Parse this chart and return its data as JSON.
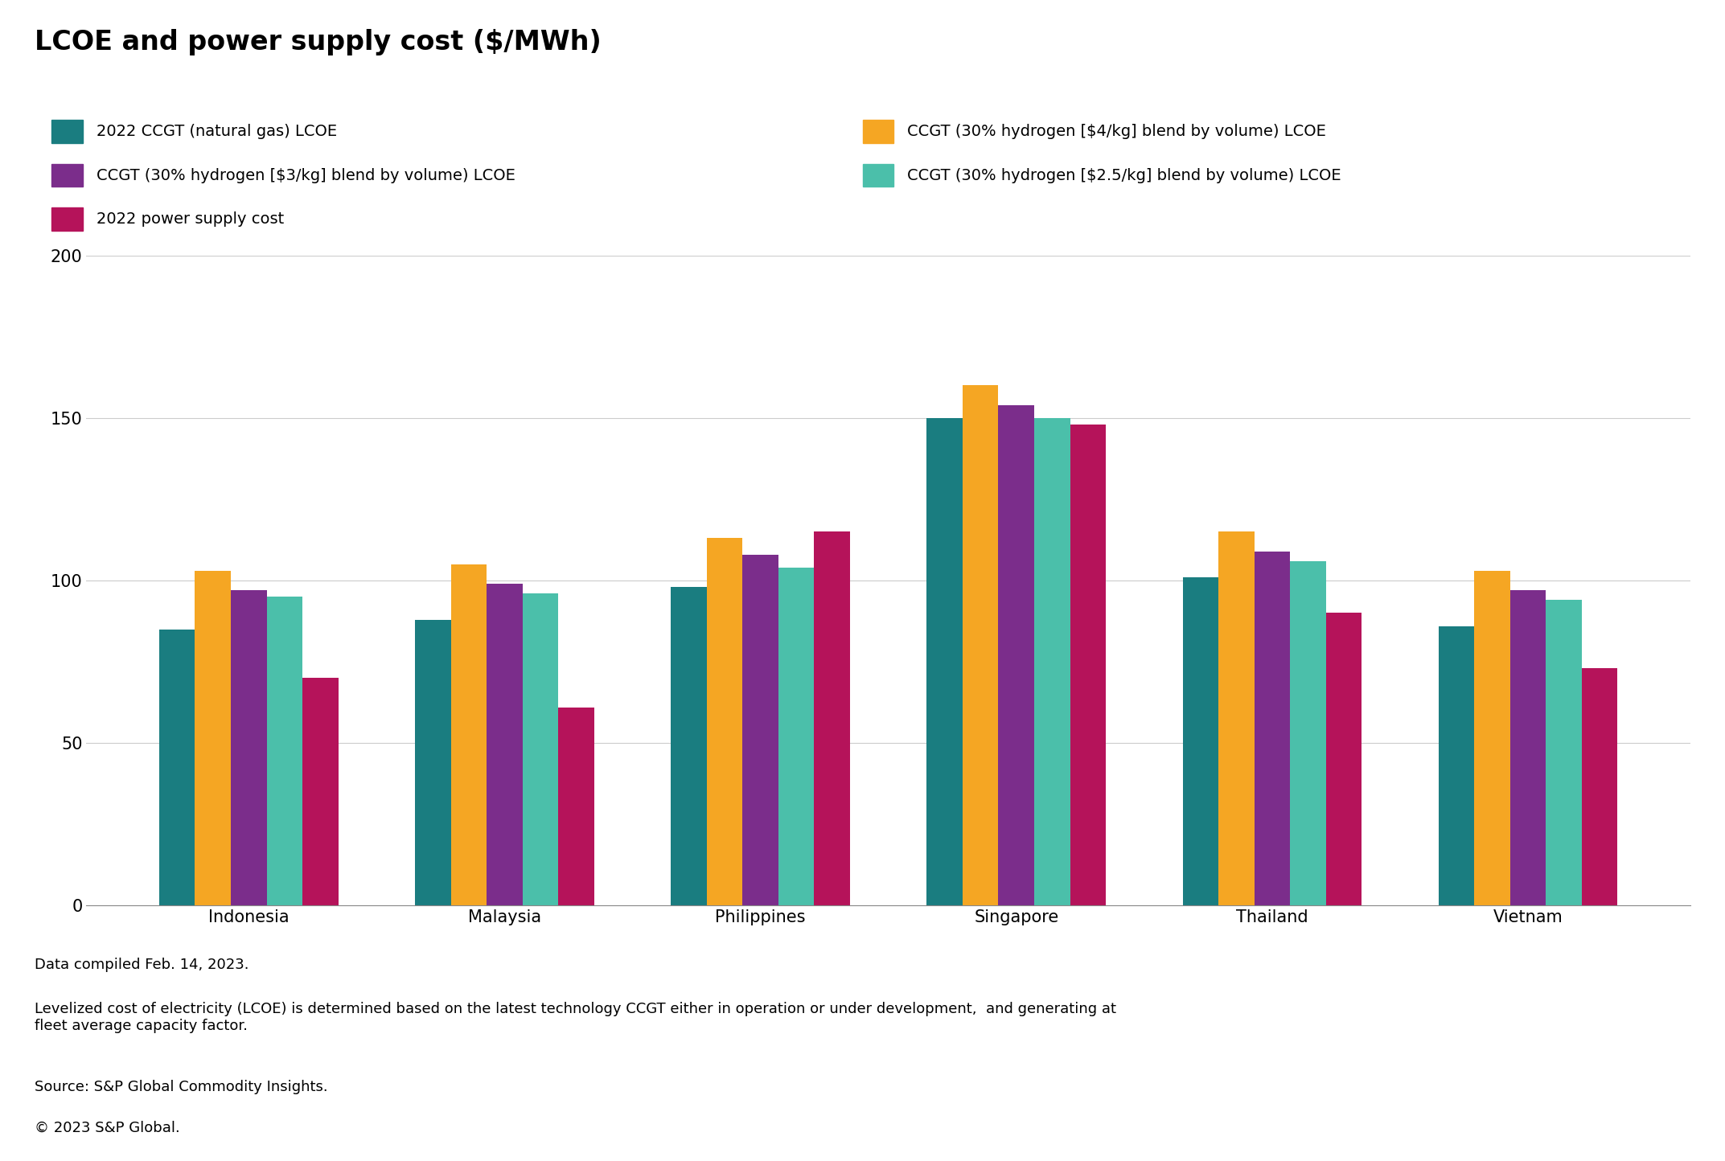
{
  "title": "LCOE and power supply cost ($/MWh)",
  "categories": [
    "Indonesia",
    "Malaysia",
    "Philippines",
    "Singapore",
    "Thailand",
    "Vietnam"
  ],
  "series": [
    {
      "label": "2022 CCGT (natural gas) LCOE",
      "color": "#1a7d80",
      "values": [
        85,
        88,
        98,
        150,
        101,
        86
      ]
    },
    {
      "label": "CCGT (30% hydrogen [$4/kg] blend by volume) LCOE",
      "color": "#f5a623",
      "values": [
        103,
        105,
        113,
        160,
        115,
        103
      ]
    },
    {
      "label": "CCGT (30% hydrogen [$3/kg] blend by volume) LCOE",
      "color": "#7b2d8b",
      "values": [
        97,
        99,
        108,
        154,
        109,
        97
      ]
    },
    {
      "label": "CCGT (30% hydrogen [$2.5/kg] blend by volume) LCOE",
      "color": "#4bbfaa",
      "values": [
        95,
        96,
        104,
        150,
        106,
        94
      ]
    },
    {
      "label": "2022 power supply cost",
      "color": "#b5135a",
      "values": [
        70,
        61,
        115,
        148,
        90,
        73
      ]
    }
  ],
  "ylim": [
    0,
    200
  ],
  "yticks": [
    0,
    50,
    100,
    150,
    200
  ],
  "footnote1": "Data compiled Feb. 14, 2023.",
  "footnote2": "Levelized cost of electricity (LCOE) is determined based on the latest technology CCGT either in operation or under development,  and generating at\nfleet average capacity factor.",
  "footnote3": "Source: S&P Global Commodity Insights.",
  "footnote4": "© 2023 S&P Global.",
  "background_color": "#ffffff",
  "title_fontsize": 24,
  "legend_fontsize": 14,
  "tick_fontsize": 15,
  "footnote_fontsize": 13,
  "bar_width": 0.14
}
